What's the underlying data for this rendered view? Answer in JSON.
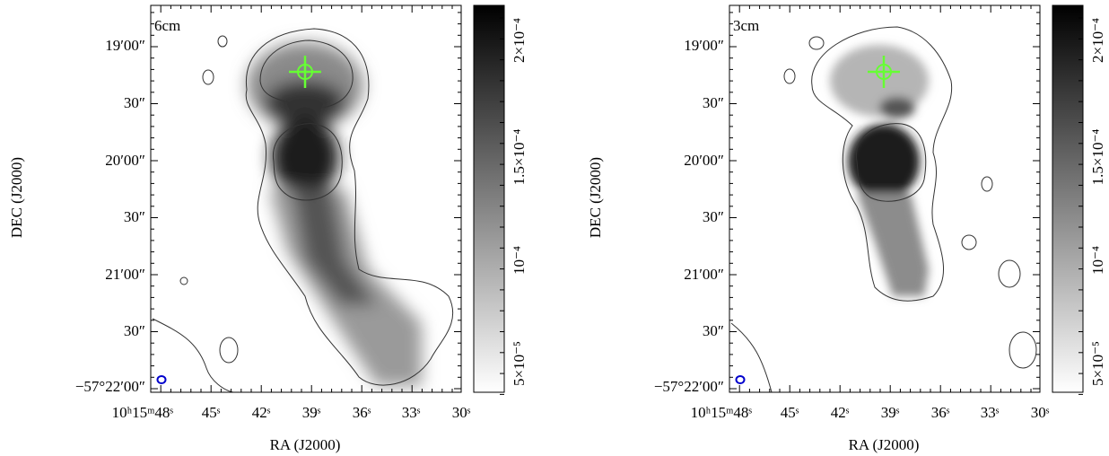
{
  "panels": [
    {
      "label": "6cm",
      "x_axis": {
        "title": "RA (J2000)",
        "ticks": [
          "10ʰ15ᵐ48ˢ",
          "45ˢ",
          "42ˢ",
          "39ˢ",
          "36ˢ",
          "33ˢ",
          "30ˢ"
        ]
      },
      "y_axis": {
        "title": "DEC (J2000)",
        "ticks": [
          "19′00″",
          "30″",
          "20′00″",
          "30″",
          "21′00″",
          "30″",
          "−57°22′00″"
        ]
      },
      "colorbar": {
        "ticks": [
          "2×10⁻⁴",
          "1.5×10⁻⁴",
          "10⁻⁴",
          "5×10⁻⁵"
        ]
      }
    },
    {
      "label": "3cm",
      "x_axis": {
        "title": "RA (J2000)",
        "ticks": [
          "10ʰ15ᵐ48ˢ",
          "45ˢ",
          "42ˢ",
          "39ˢ",
          "36ˢ",
          "33ˢ",
          "30ˢ"
        ]
      },
      "y_axis": {
        "title": "DEC (J2000)",
        "ticks": [
          "19′00″",
          "30″",
          "20′00″",
          "30″",
          "21′00″",
          "30″",
          "−57°22′00″"
        ]
      },
      "colorbar": {
        "ticks": [
          "2×10⁻⁴",
          "1.5×10⁻⁴",
          "10⁻⁴",
          "5×10⁻⁵"
        ]
      }
    }
  ]
}
